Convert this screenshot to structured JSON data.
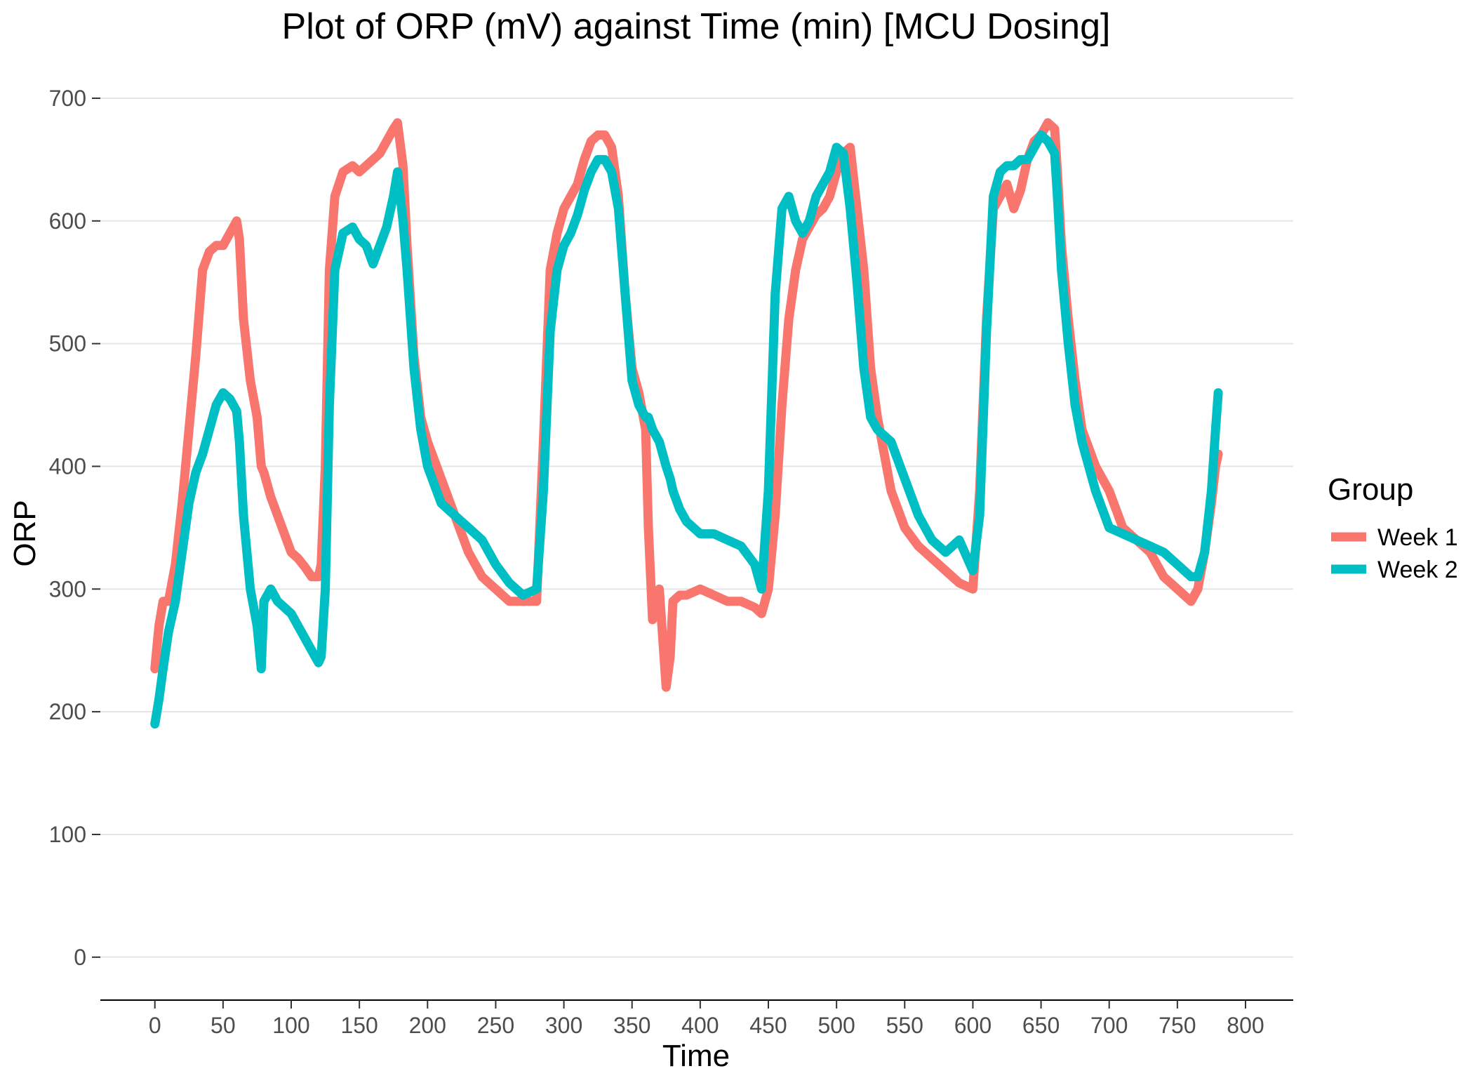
{
  "chart_data": {
    "type": "line",
    "title": "Plot of ORP (mV) against Time (min) [MCU Dosing]",
    "xlabel": "Time",
    "ylabel": "ORP",
    "xlim": [
      -40,
      835
    ],
    "ylim": [
      -35,
      720
    ],
    "x_ticks": [
      0,
      50,
      100,
      150,
      200,
      250,
      300,
      350,
      400,
      450,
      500,
      550,
      600,
      650,
      700,
      750,
      800
    ],
    "y_ticks": [
      0,
      100,
      200,
      300,
      400,
      500,
      600,
      700
    ],
    "grid": "horizontal",
    "legend_position": "right",
    "legend_title": "Group",
    "series": [
      {
        "name": "Week 1",
        "color": "#F8766D",
        "x": [
          0,
          3,
          6,
          10,
          15,
          20,
          25,
          30,
          35,
          40,
          45,
          50,
          55,
          60,
          62,
          65,
          70,
          75,
          78,
          80,
          85,
          90,
          95,
          100,
          105,
          110,
          115,
          120,
          122,
          125,
          128,
          132,
          138,
          145,
          150,
          155,
          160,
          165,
          170,
          175,
          178,
          182,
          185,
          190,
          195,
          200,
          210,
          220,
          230,
          240,
          250,
          260,
          270,
          280,
          285,
          290,
          295,
          300,
          305,
          310,
          315,
          320,
          325,
          330,
          335,
          340,
          345,
          350,
          355,
          360,
          362,
          365,
          370,
          375,
          378,
          380,
          385,
          390,
          400,
          410,
          420,
          430,
          440,
          445,
          450,
          455,
          460,
          465,
          470,
          475,
          480,
          485,
          490,
          495,
          500,
          505,
          510,
          515,
          520,
          525,
          530,
          540,
          550,
          560,
          570,
          580,
          590,
          600,
          605,
          610,
          615,
          620,
          625,
          630,
          635,
          640,
          645,
          650,
          655,
          660,
          662,
          665,
          670,
          675,
          680,
          690,
          700,
          710,
          720,
          730,
          740,
          750,
          760,
          765,
          770,
          775,
          778,
          780
        ],
        "y": [
          235,
          270,
          290,
          290,
          320,
          370,
          430,
          490,
          560,
          575,
          580,
          580,
          590,
          600,
          585,
          520,
          470,
          440,
          400,
          395,
          375,
          360,
          345,
          330,
          325,
          318,
          310,
          310,
          320,
          400,
          560,
          620,
          640,
          645,
          640,
          645,
          650,
          655,
          665,
          675,
          680,
          645,
          580,
          490,
          440,
          420,
          390,
          360,
          330,
          310,
          300,
          290,
          290,
          290,
          420,
          560,
          590,
          610,
          620,
          630,
          650,
          665,
          670,
          670,
          660,
          620,
          540,
          480,
          460,
          430,
          350,
          275,
          300,
          220,
          245,
          290,
          295,
          295,
          300,
          295,
          290,
          290,
          285,
          280,
          300,
          360,
          450,
          520,
          560,
          585,
          595,
          605,
          610,
          620,
          640,
          655,
          660,
          610,
          560,
          480,
          440,
          380,
          350,
          335,
          325,
          315,
          305,
          300,
          380,
          520,
          610,
          620,
          630,
          610,
          625,
          650,
          665,
          670,
          680,
          675,
          640,
          580,
          520,
          470,
          430,
          400,
          380,
          350,
          340,
          330,
          310,
          300,
          290,
          300,
          330,
          370,
          400,
          410
        ]
      },
      {
        "name": "Week 2",
        "color": "#00BFC4",
        "x": [
          0,
          3,
          6,
          10,
          15,
          20,
          25,
          30,
          35,
          40,
          45,
          50,
          55,
          60,
          62,
          65,
          70,
          75,
          78,
          80,
          85,
          90,
          95,
          100,
          105,
          110,
          115,
          120,
          122,
          125,
          128,
          132,
          138,
          145,
          150,
          155,
          160,
          165,
          170,
          175,
          178,
          182,
          185,
          190,
          195,
          200,
          210,
          220,
          230,
          240,
          250,
          260,
          270,
          280,
          285,
          290,
          295,
          300,
          305,
          310,
          315,
          320,
          325,
          330,
          335,
          340,
          345,
          350,
          355,
          360,
          362,
          365,
          370,
          375,
          378,
          380,
          385,
          390,
          400,
          410,
          420,
          430,
          440,
          445,
          450,
          455,
          460,
          465,
          470,
          475,
          480,
          485,
          490,
          495,
          500,
          505,
          510,
          515,
          520,
          525,
          530,
          540,
          550,
          560,
          570,
          580,
          590,
          600,
          605,
          610,
          615,
          620,
          625,
          630,
          635,
          640,
          645,
          650,
          655,
          660,
          662,
          665,
          670,
          675,
          680,
          690,
          700,
          710,
          720,
          730,
          740,
          750,
          760,
          765,
          770,
          775,
          778,
          780
        ],
        "y": [
          190,
          210,
          235,
          265,
          290,
          330,
          370,
          395,
          410,
          430,
          450,
          460,
          455,
          445,
          420,
          360,
          300,
          270,
          235,
          290,
          300,
          290,
          285,
          280,
          270,
          260,
          250,
          240,
          245,
          300,
          450,
          560,
          590,
          595,
          585,
          580,
          565,
          580,
          595,
          620,
          640,
          600,
          560,
          480,
          430,
          400,
          370,
          360,
          350,
          340,
          320,
          305,
          295,
          300,
          380,
          510,
          560,
          580,
          590,
          605,
          625,
          640,
          650,
          650,
          640,
          610,
          540,
          470,
          450,
          440,
          440,
          430,
          420,
          400,
          390,
          380,
          365,
          355,
          345,
          345,
          340,
          335,
          320,
          300,
          380,
          540,
          610,
          620,
          600,
          590,
          600,
          620,
          630,
          640,
          660,
          655,
          610,
          550,
          480,
          440,
          430,
          420,
          390,
          360,
          340,
          330,
          340,
          315,
          360,
          510,
          620,
          640,
          645,
          645,
          650,
          650,
          660,
          670,
          665,
          655,
          620,
          560,
          500,
          450,
          420,
          380,
          350,
          345,
          340,
          335,
          330,
          320,
          310,
          310,
          330,
          380,
          430,
          460
        ]
      }
    ]
  }
}
